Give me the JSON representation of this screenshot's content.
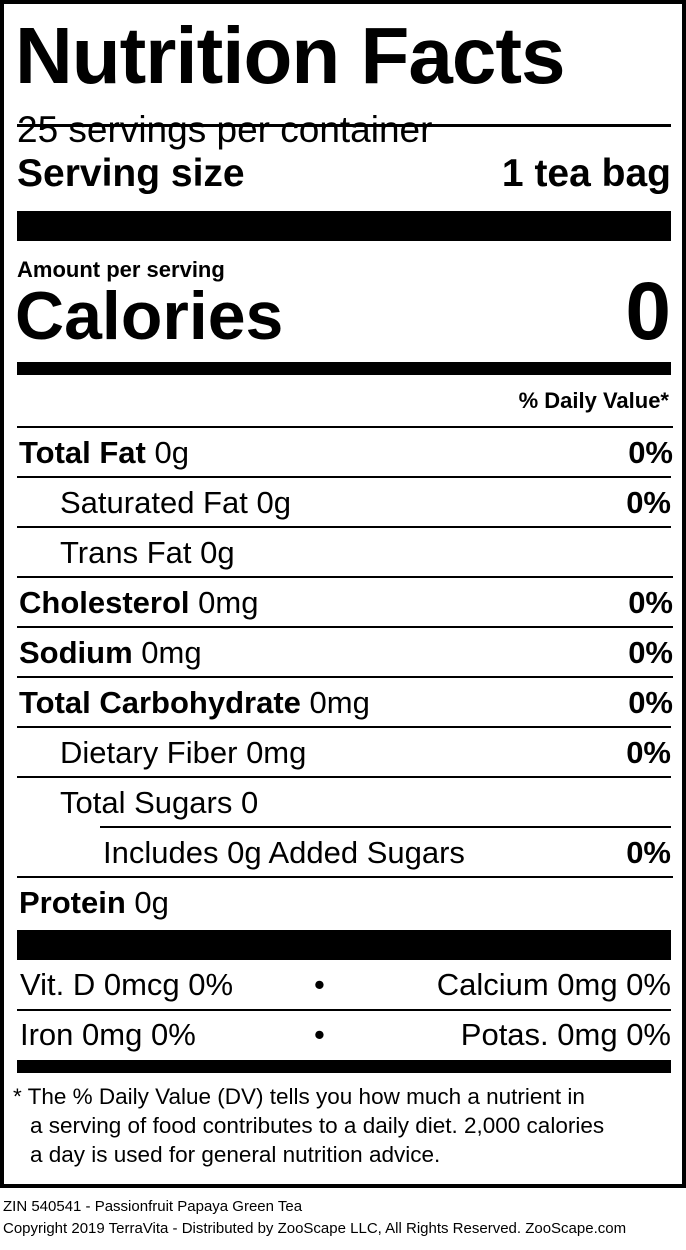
{
  "title": "Nutrition Facts",
  "servings": "25 servings per container",
  "serving_size_label": "Serving size",
  "serving_size_value": "1 tea bag",
  "amount_per_serving": "Amount per serving",
  "calories_label": "Calories",
  "calories_value": "0",
  "dv_header": "% Daily Value*",
  "nutrients": [
    {
      "name": "Total Fat",
      "amount": "0g",
      "dv": "0%"
    },
    {
      "name": "Saturated Fat",
      "amount": "0g",
      "dv": "0%"
    },
    {
      "name": "Trans Fat",
      "amount": "0g",
      "dv": ""
    },
    {
      "name": "Cholesterol",
      "amount": "0mg",
      "dv": "0%"
    },
    {
      "name": "Sodium",
      "amount": "0mg",
      "dv": "0%"
    },
    {
      "name": "Total Carbohydrate",
      "amount": "0mg",
      "dv": "0%"
    },
    {
      "name": "Dietary Fiber",
      "amount": "0mg",
      "dv": "0%"
    },
    {
      "name": "Total Sugars",
      "amount": "0",
      "dv": ""
    },
    {
      "name": "Includes 0g Added Sugars",
      "amount": "",
      "dv": "0%"
    },
    {
      "name": "Protein",
      "amount": "0g",
      "dv": ""
    }
  ],
  "vitamins": [
    {
      "left": "Vit. D 0mcg 0%",
      "right": "Calcium 0mg 0%"
    },
    {
      "left": "Iron 0mg 0%",
      "right": "Potas. 0mg 0%"
    }
  ],
  "bullet": "•",
  "footnote": [
    "* The % Daily Value (DV) tells you how much a nutrient in",
    "a serving of food contributes to a daily diet. 2,000 calories",
    "a day is used for general nutrition advice."
  ],
  "footer": {
    "product": "ZIN 540541 - Passionfruit Papaya Green Tea",
    "copyright": "Copyright 2019 TerraVita - Distributed by ZooScape LLC, All Rights Reserved. ZooScape.com"
  }
}
